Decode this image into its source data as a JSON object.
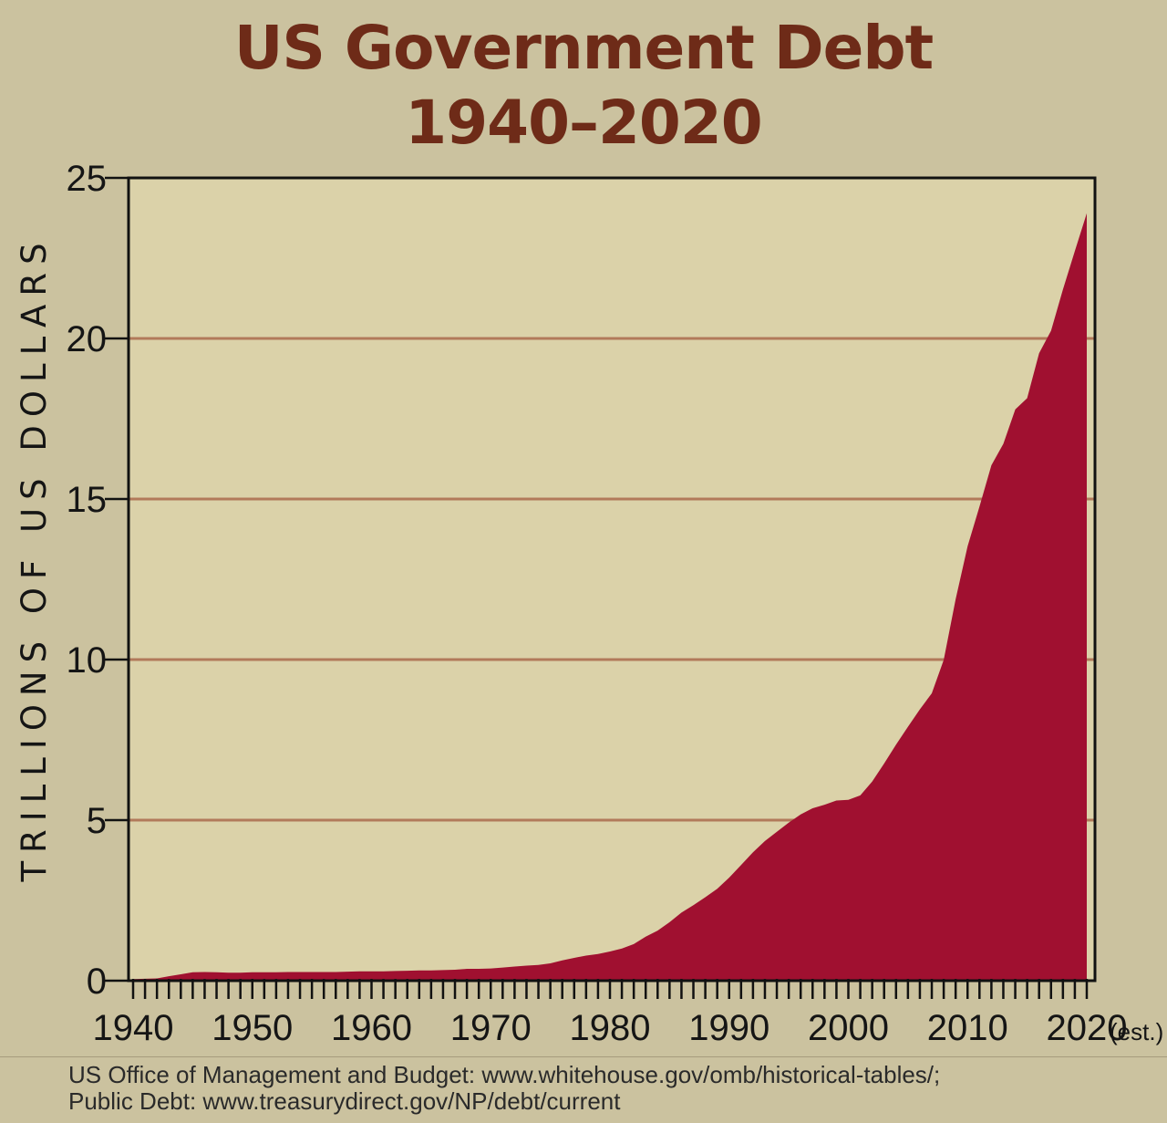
{
  "chart_data": {
    "type": "area",
    "title": "US Government Debt",
    "subtitle": "1940–2020",
    "ylabel": "TRILLIONS OF US DOLLARS",
    "xlabel": "",
    "xlim": [
      1940,
      2020
    ],
    "ylim": [
      0,
      25
    ],
    "yticks": [
      0,
      5,
      10,
      15,
      20,
      25
    ],
    "xticks": [
      1940,
      1950,
      1960,
      1970,
      1980,
      1990,
      2000,
      2010,
      2020
    ],
    "x_est_note": "(est.)",
    "grid": true,
    "x": [
      1940,
      1941,
      1942,
      1943,
      1944,
      1945,
      1946,
      1947,
      1948,
      1949,
      1950,
      1951,
      1952,
      1953,
      1954,
      1955,
      1956,
      1957,
      1958,
      1959,
      1960,
      1961,
      1962,
      1963,
      1964,
      1965,
      1966,
      1967,
      1968,
      1969,
      1970,
      1971,
      1972,
      1973,
      1974,
      1975,
      1976,
      1977,
      1978,
      1979,
      1980,
      1981,
      1982,
      1983,
      1984,
      1985,
      1986,
      1987,
      1988,
      1989,
      1990,
      1991,
      1992,
      1993,
      1994,
      1995,
      1996,
      1997,
      1998,
      1999,
      2000,
      2001,
      2002,
      2003,
      2004,
      2005,
      2006,
      2007,
      2008,
      2009,
      2010,
      2011,
      2012,
      2013,
      2014,
      2015,
      2016,
      2017,
      2018,
      2019,
      2020
    ],
    "values": [
      0.05,
      0.06,
      0.07,
      0.14,
      0.2,
      0.26,
      0.27,
      0.26,
      0.25,
      0.25,
      0.26,
      0.26,
      0.26,
      0.27,
      0.27,
      0.27,
      0.27,
      0.27,
      0.28,
      0.29,
      0.29,
      0.29,
      0.3,
      0.31,
      0.32,
      0.32,
      0.33,
      0.34,
      0.37,
      0.37,
      0.38,
      0.41,
      0.44,
      0.47,
      0.49,
      0.54,
      0.63,
      0.71,
      0.78,
      0.83,
      0.91,
      1.0,
      1.14,
      1.37,
      1.56,
      1.82,
      2.12,
      2.35,
      2.6,
      2.86,
      3.21,
      3.6,
      4.0,
      4.35,
      4.64,
      4.92,
      5.18,
      5.37,
      5.48,
      5.61,
      5.63,
      5.77,
      6.2,
      6.76,
      7.35,
      7.91,
      8.45,
      8.95,
      9.99,
      11.88,
      13.53,
      14.76,
      16.05,
      16.72,
      17.79,
      18.14,
      19.54,
      20.24,
      21.52,
      22.72,
      23.9
    ],
    "fill_color": "#a01030",
    "plot_bg": "#dbd2a9",
    "grid_color": "#b27a5a"
  },
  "source": {
    "line1": "US Office of Management and Budget: www.whitehouse.gov/omb/historical-tables/;",
    "line2": "Public Debt: www.treasurydirect.gov/NP/debt/current"
  }
}
